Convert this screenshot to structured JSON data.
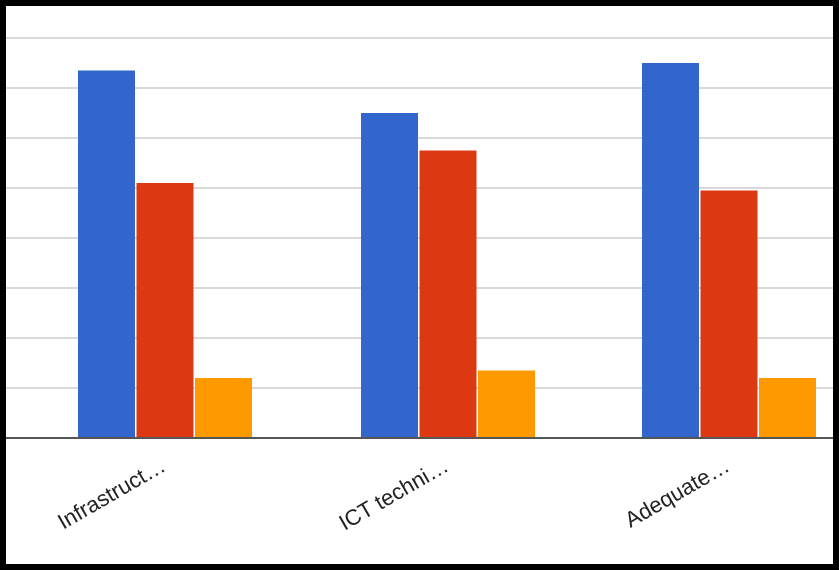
{
  "chart_data": {
    "type": "bar",
    "categories": [
      "Infrastruct…",
      "ICT techni…",
      "Adequate…"
    ],
    "series": [
      {
        "values": [
          7.35,
          6.5,
          7.5
        ],
        "color": "#3366cc"
      },
      {
        "values": [
          5.1,
          5.75,
          4.95
        ],
        "color": "#dc3912"
      },
      {
        "values": [
          1.2,
          1.35,
          1.2
        ],
        "color": "#ff9900"
      }
    ],
    "ylim": [
      0,
      8
    ],
    "grid": true,
    "legend": "none"
  }
}
